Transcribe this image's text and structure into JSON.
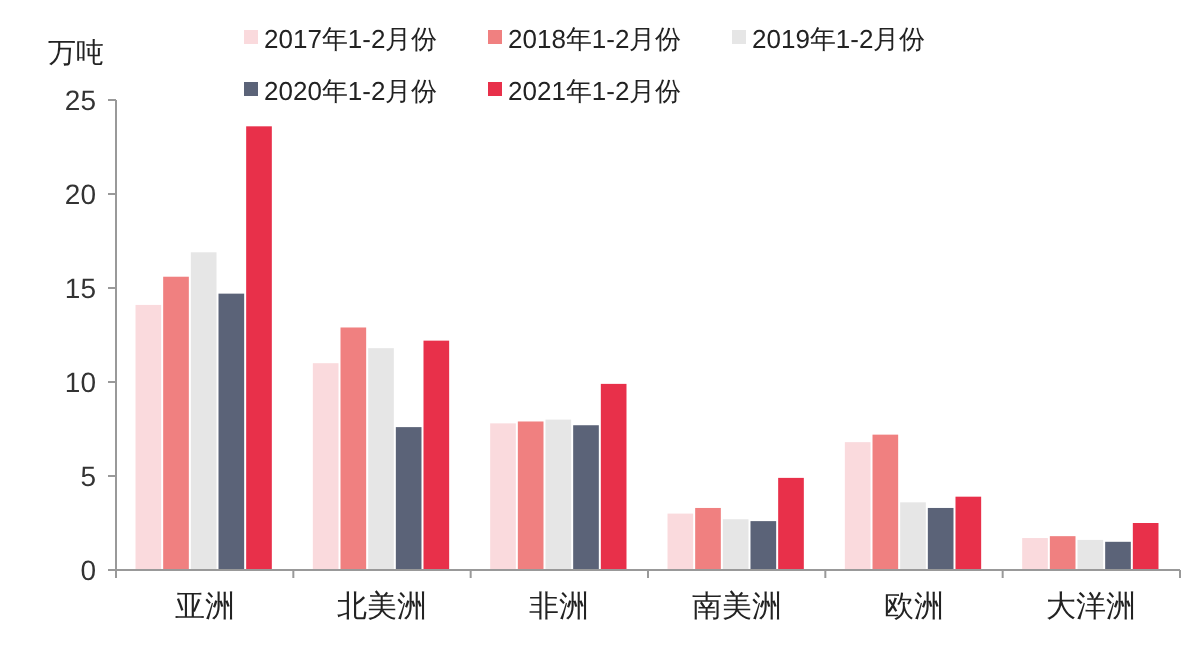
{
  "chart_data": {
    "type": "bar",
    "ylabel": "万吨",
    "categories": [
      "亚洲",
      "北美洲",
      "非洲",
      "南美洲",
      "欧洲",
      "大洋洲"
    ],
    "series": [
      {
        "name": "2017年1-2月份",
        "color": "#fadadd",
        "values": [
          14.1,
          11.0,
          7.8,
          3.0,
          6.8,
          1.7
        ]
      },
      {
        "name": "2018年1-2月份",
        "color": "#f08080",
        "values": [
          15.6,
          12.9,
          7.9,
          3.3,
          7.2,
          1.8
        ]
      },
      {
        "name": "2019年1-2月份",
        "color": "#e6e6e6",
        "values": [
          16.9,
          11.8,
          8.0,
          2.7,
          3.6,
          1.6
        ]
      },
      {
        "name": "2020年1-2月份",
        "color": "#5b6378",
        "values": [
          14.7,
          7.6,
          7.7,
          2.6,
          3.3,
          1.5
        ]
      },
      {
        "name": "2021年1-2月份",
        "color": "#e8304a",
        "values": [
          23.6,
          12.2,
          9.9,
          4.9,
          3.9,
          2.5
        ]
      }
    ],
    "ylim": [
      0,
      25
    ],
    "yticks": [
      0,
      5,
      10,
      15,
      20,
      25
    ],
    "legend": "top",
    "grid": false
  }
}
